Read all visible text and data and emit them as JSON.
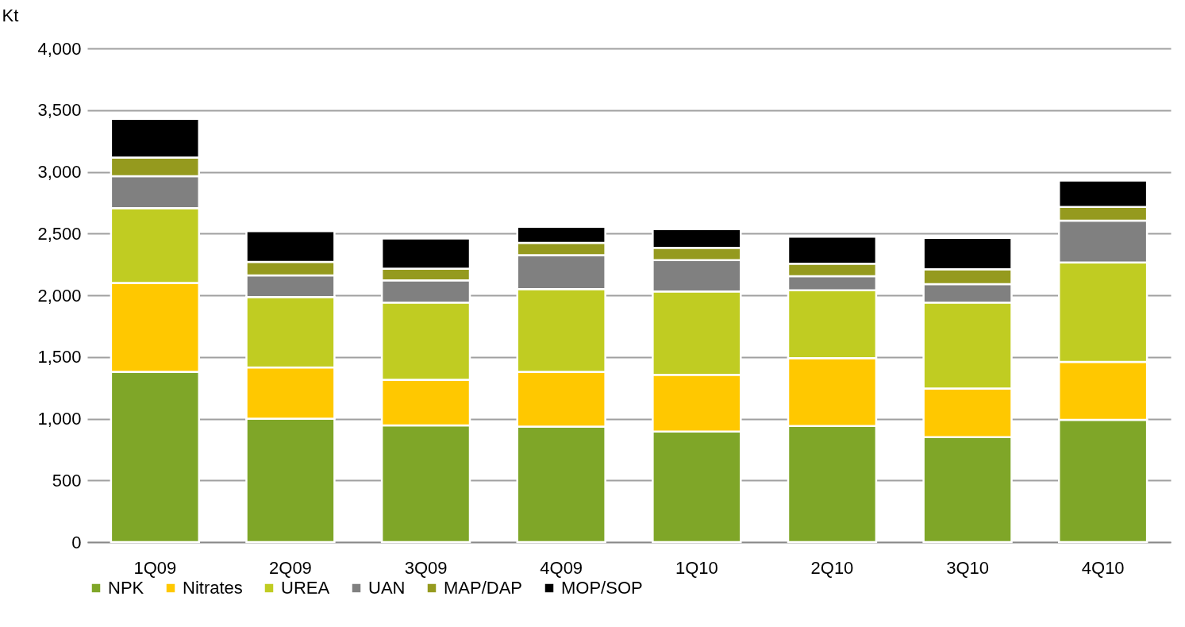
{
  "chart_data": {
    "type": "bar",
    "stacked": true,
    "ylabel": "Kt",
    "categories": [
      "1Q09",
      "2Q09",
      "3Q09",
      "4Q09",
      "1Q10",
      "2Q10",
      "3Q10",
      "4Q10"
    ],
    "series": [
      {
        "name": "NPK",
        "color": "#7fa628",
        "values": [
          1380,
          1000,
          945,
          935,
          895,
          940,
          850,
          990
        ]
      },
      {
        "name": "Nitrates",
        "color": "#ffc800",
        "values": [
          720,
          415,
          370,
          445,
          460,
          550,
          395,
          470
        ]
      },
      {
        "name": "UREA",
        "color": "#c0cc22",
        "values": [
          605,
          570,
          625,
          670,
          675,
          550,
          695,
          805
        ]
      },
      {
        "name": "UAN",
        "color": "#808080",
        "values": [
          260,
          175,
          180,
          275,
          255,
          115,
          150,
          340
        ]
      },
      {
        "name": "MAP/DAP",
        "color": "#959a1e",
        "values": [
          150,
          110,
          95,
          100,
          100,
          100,
          120,
          110
        ]
      },
      {
        "name": "MOP/SOP",
        "color": "#000000",
        "values": [
          315,
          250,
          245,
          130,
          150,
          220,
          255,
          215
        ]
      }
    ],
    "ylim": [
      0,
      4000
    ],
    "yticks": [
      0,
      500,
      {
        "value": 1000,
        "label": "1,000"
      },
      {
        "value": 1500,
        "label": "1,500"
      },
      {
        "value": 2000,
        "label": "2,000"
      },
      {
        "value": 2500,
        "label": "2,500"
      },
      {
        "value": 3000,
        "label": "3,000"
      },
      {
        "value": 3500,
        "label": "3,500"
      },
      {
        "value": 4000,
        "label": "4,000"
      }
    ],
    "grid": "y",
    "legend": "bottom"
  }
}
